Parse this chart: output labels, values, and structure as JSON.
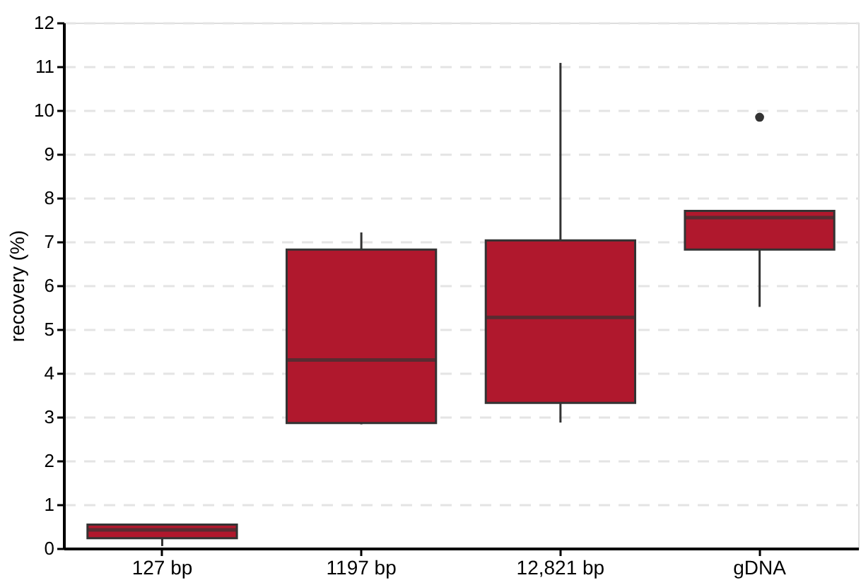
{
  "chart_data": {
    "type": "box",
    "ylabel": "recovery (%)",
    "categories": [
      "127 bp",
      "1197 bp",
      "12,821 bp",
      "gDNA"
    ],
    "series": [
      {
        "color": "#b0182d",
        "boxes": [
          {
            "low": 0.05,
            "q1": 0.23,
            "median": 0.42,
            "q3": 0.54,
            "high": 0.55
          },
          {
            "low": 2.83,
            "q1": 2.86,
            "median": 4.3,
            "q3": 6.82,
            "high": 7.21
          },
          {
            "low": 2.87,
            "q1": 3.32,
            "median": 5.27,
            "q3": 7.03,
            "high": 11.08
          },
          {
            "low": 5.51,
            "q1": 6.82,
            "median": 7.55,
            "q3": 7.7,
            "high": 7.7,
            "outliers": [
              9.84
            ]
          }
        ]
      }
    ],
    "ylim": [
      0,
      12
    ],
    "yticks": [
      0,
      1,
      2,
      3,
      4,
      5,
      6,
      7,
      8,
      9,
      10,
      11,
      12
    ],
    "grid": "y"
  }
}
